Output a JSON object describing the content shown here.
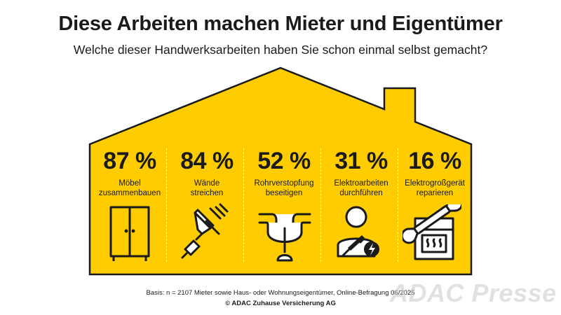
{
  "title": "Diese Arbeiten machen Mieter und Eigentümer",
  "subtitle": "Welche dieser Handwerksarbeiten haben Sie schon einmal selbst gemacht?",
  "chart_data": {
    "type": "table",
    "categories": [
      "Möbel zusammenbauen",
      "Wände streichen",
      "Rohrverstopfung beseitigen",
      "Elektroarbeiten durchführen",
      "Elektrogroßgerät reparieren"
    ],
    "values": [
      87,
      84,
      52,
      31,
      16
    ],
    "unit": "%"
  },
  "items": [
    {
      "pct": "87 %",
      "line1": "Möbel",
      "line2": "zusammenbauen",
      "icon": "wardrobe-icon"
    },
    {
      "pct": "84 %",
      "line1": "Wände",
      "line2": "streichen",
      "icon": "paint-roller-icon"
    },
    {
      "pct": "52 %",
      "line1": "Rohrverstopfung",
      "line2": "beseitigen",
      "icon": "plunger-pipe-icon"
    },
    {
      "pct": "31 %",
      "line1": "Elektroarbeiten",
      "line2": "durchführen",
      "icon": "electrician-icon"
    },
    {
      "pct": "16 %",
      "line1": "Elektrogroßgerät",
      "line2": "reparieren",
      "icon": "oven-wrench-icon"
    }
  ],
  "footer": {
    "basis": "Basis: n = 2107 Mieter sowie Haus- oder Wohnungseigentümer, Online-Befragung 06/2025",
    "copyright": "© ADAC Zuhause Versicherung AG"
  },
  "watermark": "ADAC Presse",
  "colors": {
    "house": "#FFCC00",
    "outline": "#1a1a1a",
    "text": "#1a1a1a"
  }
}
